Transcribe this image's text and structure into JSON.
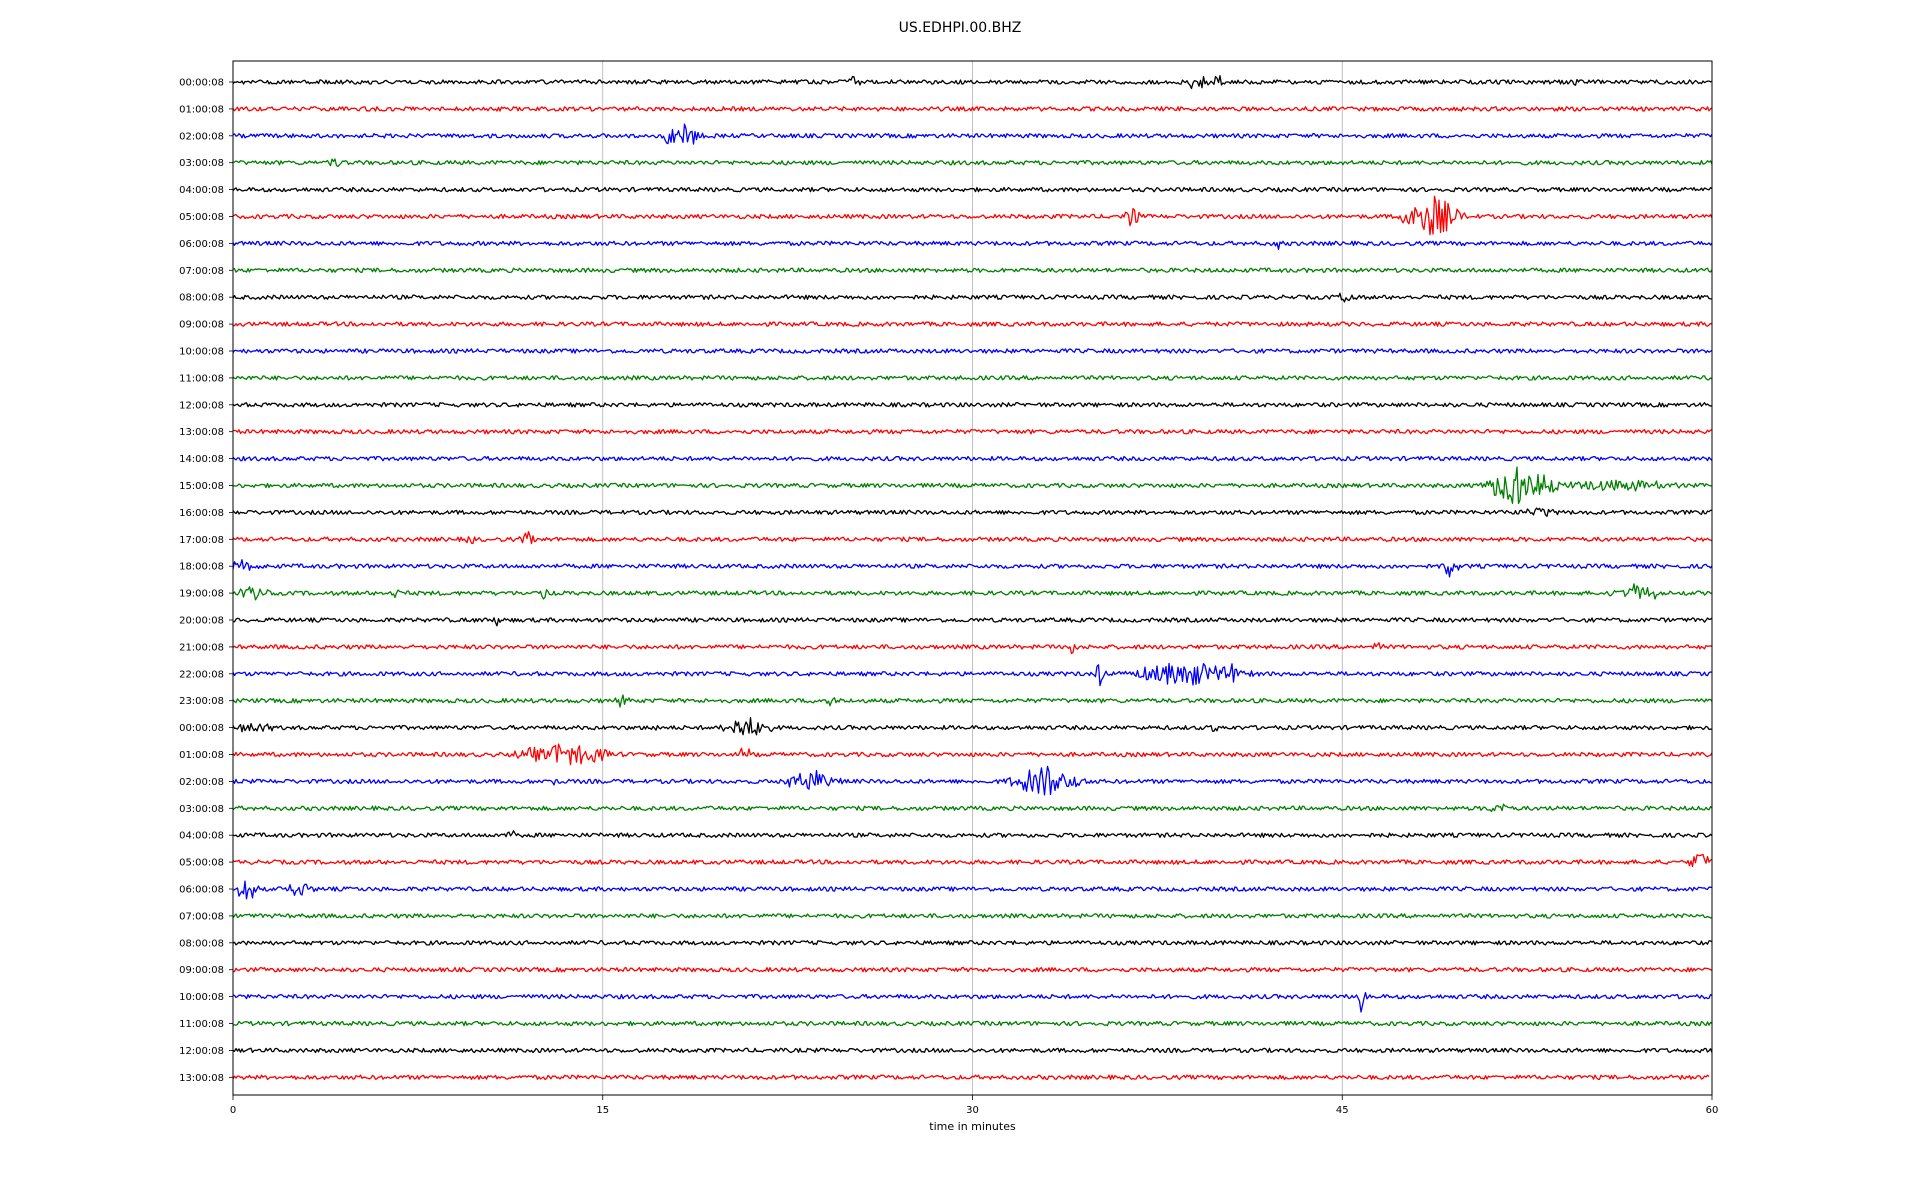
{
  "chart_data": {
    "type": "line",
    "title": "US.EDHPI.00.BHZ",
    "xlabel": "time in minutes",
    "ylabel": "",
    "xlim": [
      0,
      60
    ],
    "x_ticks": [
      0,
      15,
      30,
      45,
      60
    ],
    "grid": "vertical",
    "colors": [
      "#000000",
      "#ff0000",
      "#0000ff",
      "#008000"
    ],
    "row_labels": [
      "00:00:08",
      "01:00:08",
      "02:00:08",
      "03:00:08",
      "04:00:08",
      "05:00:08",
      "06:00:08",
      "07:00:08",
      "08:00:08",
      "09:00:08",
      "10:00:08",
      "11:00:08",
      "12:00:08",
      "13:00:08",
      "14:00:08",
      "15:00:08",
      "16:00:08",
      "17:00:08",
      "18:00:08",
      "19:00:08",
      "20:00:08",
      "21:00:08",
      "22:00:08",
      "23:00:08",
      "00:00:08",
      "01:00:08",
      "02:00:08",
      "03:00:08",
      "04:00:08",
      "05:00:08",
      "06:00:08",
      "07:00:08",
      "08:00:08",
      "09:00:08",
      "10:00:08",
      "11:00:08",
      "12:00:08",
      "13:00:08"
    ],
    "trace_end_minutes": [
      60,
      60,
      60,
      60,
      60,
      60,
      60,
      60,
      60,
      60,
      60,
      60,
      60,
      60,
      60,
      60,
      60,
      60,
      60,
      60,
      60,
      60,
      60,
      60,
      60,
      60,
      60,
      60,
      60,
      60,
      60,
      60,
      60,
      60,
      60,
      60,
      60,
      59.9
    ],
    "events": [
      {
        "row": 0,
        "minute": 25.2,
        "amp": 0.6,
        "dur": 0.3
      },
      {
        "row": 0,
        "minute": 39.0,
        "amp": 0.8,
        "dur": 0.8
      },
      {
        "row": 0,
        "minute": 40.0,
        "amp": 1.1,
        "dur": 0.3
      },
      {
        "row": 0,
        "minute": 54.4,
        "amp": 0.4,
        "dur": 0.2
      },
      {
        "row": 2,
        "minute": 18.2,
        "amp": 1.3,
        "dur": 1.0
      },
      {
        "row": 3,
        "minute": 4.1,
        "amp": 0.5,
        "dur": 0.4
      },
      {
        "row": 5,
        "minute": 36.5,
        "amp": 0.9,
        "dur": 0.4
      },
      {
        "row": 5,
        "minute": 48.6,
        "amp": 1.9,
        "dur": 1.5
      },
      {
        "row": 6,
        "minute": 42.4,
        "amp": 0.4,
        "dur": 0.2
      },
      {
        "row": 8,
        "minute": 45.2,
        "amp": 0.8,
        "dur": 0.4
      },
      {
        "row": 15,
        "minute": 52.3,
        "amp": 1.9,
        "dur": 1.8
      },
      {
        "row": 15,
        "minute": 56.0,
        "amp": 0.5,
        "dur": 3.0
      },
      {
        "row": 16,
        "minute": 53.0,
        "amp": 0.5,
        "dur": 1.0
      },
      {
        "row": 17,
        "minute": 9.6,
        "amp": 0.4,
        "dur": 0.3
      },
      {
        "row": 17,
        "minute": 12.0,
        "amp": 0.6,
        "dur": 0.5
      },
      {
        "row": 18,
        "minute": 0.5,
        "amp": 0.5,
        "dur": 0.8
      },
      {
        "row": 18,
        "minute": 49.4,
        "amp": 0.9,
        "dur": 0.6
      },
      {
        "row": 19,
        "minute": 0.8,
        "amp": 0.6,
        "dur": 0.8
      },
      {
        "row": 19,
        "minute": 6.6,
        "amp": 0.4,
        "dur": 0.3
      },
      {
        "row": 19,
        "minute": 12.6,
        "amp": 0.5,
        "dur": 0.4
      },
      {
        "row": 19,
        "minute": 57.0,
        "amp": 0.7,
        "dur": 1.5
      },
      {
        "row": 20,
        "minute": 10.0,
        "amp": 0.5,
        "dur": 0.3
      },
      {
        "row": 20,
        "minute": 10.7,
        "amp": 0.7,
        "dur": 0.2
      },
      {
        "row": 21,
        "minute": 34.0,
        "amp": 0.7,
        "dur": 0.4
      },
      {
        "row": 21,
        "minute": 46.3,
        "amp": 0.4,
        "dur": 0.4
      },
      {
        "row": 22,
        "minute": 35.2,
        "amp": 1.3,
        "dur": 0.3
      },
      {
        "row": 22,
        "minute": 38.8,
        "amp": 1.1,
        "dur": 3.0
      },
      {
        "row": 22,
        "minute": 40.6,
        "amp": 0.8,
        "dur": 0.3
      },
      {
        "row": 23,
        "minute": 15.8,
        "amp": 0.5,
        "dur": 0.4
      },
      {
        "row": 23,
        "minute": 24.2,
        "amp": 0.4,
        "dur": 0.5
      },
      {
        "row": 24,
        "minute": 0.8,
        "amp": 0.5,
        "dur": 1.0
      },
      {
        "row": 24,
        "minute": 17.2,
        "amp": 0.5,
        "dur": 0.3
      },
      {
        "row": 24,
        "minute": 20.8,
        "amp": 1.2,
        "dur": 1.2
      },
      {
        "row": 24,
        "minute": 39.8,
        "amp": 0.4,
        "dur": 0.2
      },
      {
        "row": 25,
        "minute": 13.5,
        "amp": 1.0,
        "dur": 2.5
      },
      {
        "row": 25,
        "minute": 20.7,
        "amp": 0.8,
        "dur": 0.4
      },
      {
        "row": 26,
        "minute": 13.0,
        "amp": 0.4,
        "dur": 0.3
      },
      {
        "row": 26,
        "minute": 23.4,
        "amp": 1.0,
        "dur": 1.4
      },
      {
        "row": 26,
        "minute": 33.0,
        "amp": 1.4,
        "dur": 1.8
      },
      {
        "row": 27,
        "minute": 51.3,
        "amp": 0.6,
        "dur": 0.5
      },
      {
        "row": 28,
        "minute": 11.2,
        "amp": 0.4,
        "dur": 0.4
      },
      {
        "row": 29,
        "minute": 59.6,
        "amp": 0.8,
        "dur": 0.8
      },
      {
        "row": 30,
        "minute": 0.6,
        "amp": 1.2,
        "dur": 0.6
      },
      {
        "row": 30,
        "minute": 2.7,
        "amp": 0.6,
        "dur": 0.8
      },
      {
        "row": 34,
        "minute": 45.8,
        "amp": 1.5,
        "dur": 0.3
      }
    ]
  }
}
